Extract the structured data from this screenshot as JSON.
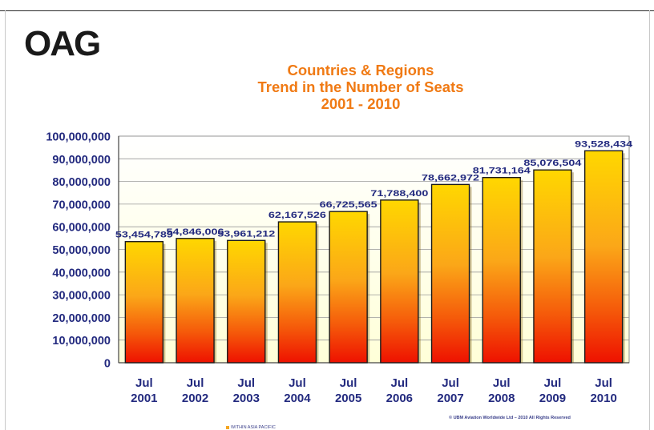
{
  "logo": {
    "text": "OAG"
  },
  "chart_data": {
    "type": "bar",
    "title": [
      "Countries & Regions",
      "Trend in the Number of Seats",
      "2001 - 2010"
    ],
    "categories": [
      [
        "Jul",
        "2001"
      ],
      [
        "Jul",
        "2002"
      ],
      [
        "Jul",
        "2003"
      ],
      [
        "Jul",
        "2004"
      ],
      [
        "Jul",
        "2005"
      ],
      [
        "Jul",
        "2006"
      ],
      [
        "Jul",
        "2007"
      ],
      [
        "Jul",
        "2008"
      ],
      [
        "Jul",
        "2009"
      ],
      [
        "Jul",
        "2010"
      ]
    ],
    "values": [
      53454789,
      54846006,
      53961212,
      62167526,
      66725565,
      71788400,
      78662972,
      81731164,
      85076504,
      93528434
    ],
    "data_labels": [
      "53,454,789",
      "54,846,006",
      "53,961,212",
      "62,167,526",
      "66,725,565",
      "71,788,400",
      "78,662,972",
      "81,731,164",
      "85,076,504",
      "93,528,434"
    ],
    "yticks": [
      "0",
      "10,000,000",
      "20,000,000",
      "30,000,000",
      "40,000,000",
      "50,000,000",
      "60,000,000",
      "70,000,000",
      "80,000,000",
      "90,000,000",
      "100,000,000"
    ],
    "ylim": [
      0,
      100000000
    ],
    "grid": true,
    "legend": "bottom-center",
    "series": [
      {
        "name": "WITHIN ASIA PACIFIC",
        "values": [
          53454789,
          54846006,
          53961212,
          62167526,
          66725565,
          71788400,
          78662972,
          81731164,
          85076504,
          93528434
        ]
      }
    ],
    "colors": {
      "bar_top": "#ffd700",
      "bar_bottom": "#ee1100",
      "plot_bg": "#ffffe6",
      "axis_text": "#232a7f",
      "title": "#f07a14"
    }
  },
  "footer": {
    "copyright": "© UBM Aviation Worldwide Ltd – 2010 All Rights Reserved"
  },
  "legend_label": "WITHIN ASIA PACIFIC"
}
